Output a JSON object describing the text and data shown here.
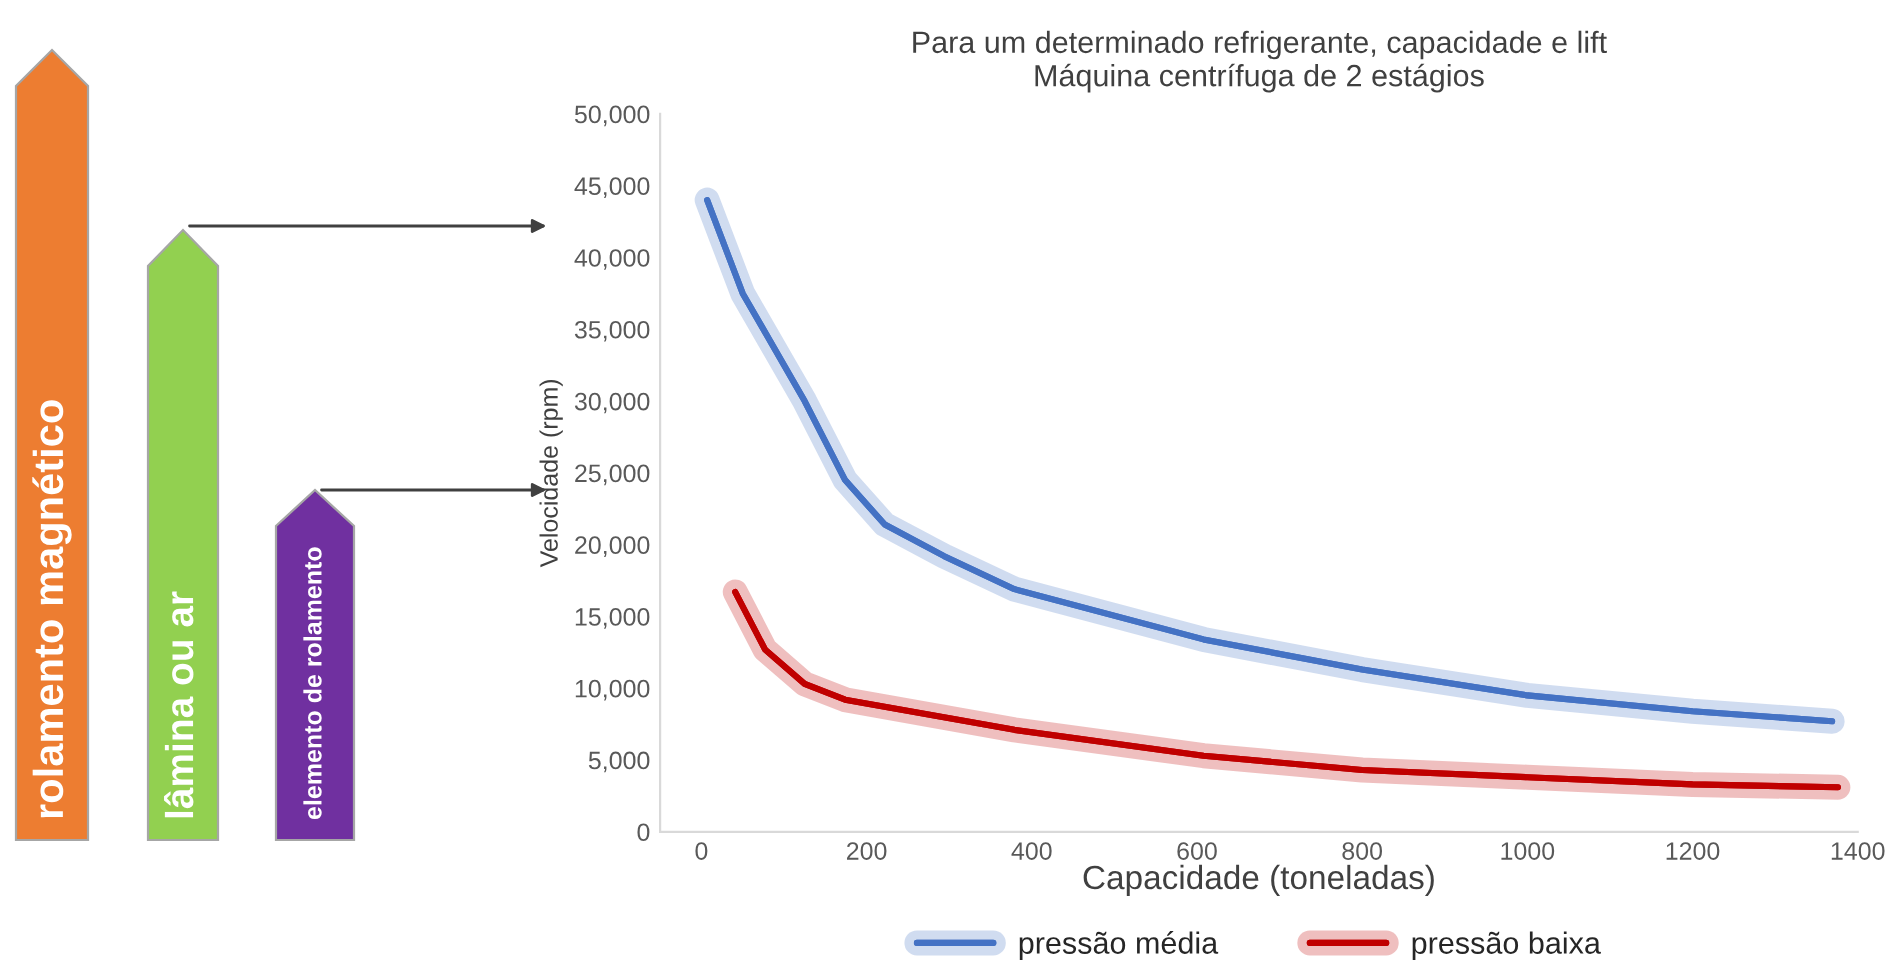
{
  "chart_data": {
    "type": "line",
    "title": "Para um determinado refrigerante, capacidade e lift\nMáquina centrífuga de 2 estágios",
    "xlabel": "Capacidade (toneladas)",
    "ylabel": "Velocidade (rpm)",
    "xlim": [
      -50,
      1400
    ],
    "xticks": [
      0,
      200,
      400,
      600,
      800,
      1000,
      1200,
      1400
    ],
    "ylim": [
      0,
      50000
    ],
    "yticks": [
      {
        "value": 0,
        "label": "0"
      },
      {
        "value": 5000,
        "label": "5,000"
      },
      {
        "value": 10000,
        "label": "10,000"
      },
      {
        "value": 15000,
        "label": "15,000"
      },
      {
        "value": 20000,
        "label": "20,000"
      },
      {
        "value": 25000,
        "label": "25,000"
      },
      {
        "value": 30000,
        "label": "30,000"
      },
      {
        "value": 35000,
        "label": "35,000"
      },
      {
        "value": 40000,
        "label": "40,000"
      },
      {
        "value": 45000,
        "label": "45,000"
      },
      {
        "value": 50000,
        "label": "50,000"
      }
    ],
    "grid": false,
    "legend": "bottom",
    "marker": "none",
    "line_style": "solid",
    "series": [
      {
        "name": "pressão média",
        "color": "#4472c4",
        "x": [
          7,
          50,
          125,
          174,
          222,
          294,
          379,
          608,
          800,
          1000,
          1200,
          1369
        ],
        "values": [
          44000,
          37500,
          30000,
          24500,
          21400,
          19200,
          16900,
          13400,
          11300,
          9500,
          8400,
          7700
        ]
      },
      {
        "name": "pressão baixa",
        "color": "#c00000",
        "x": [
          41,
          77,
          125,
          174,
          379,
          608,
          800,
          1000,
          1200,
          1376
        ],
        "values": [
          16700,
          12700,
          10300,
          9200,
          7100,
          5300,
          4300,
          3800,
          3300,
          3100
        ]
      }
    ],
    "annotations": [
      "rolamento magnético",
      "lâmina ou ar",
      "elemento de rolamento"
    ]
  }
}
